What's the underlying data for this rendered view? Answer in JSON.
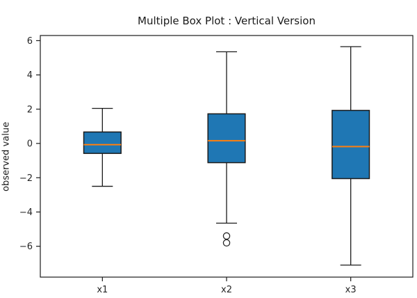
{
  "figure": {
    "background": "#ffffff"
  },
  "chart_data": {
    "type": "boxplot",
    "orientation": "vertical",
    "title": "Multiple Box Plot : Vertical Version",
    "xlabel": "",
    "ylabel": "observed value",
    "categories": [
      "x1",
      "x2",
      "x3"
    ],
    "series": [
      {
        "name": "x1",
        "whisker_low": -2.5,
        "q1": -0.58,
        "median": -0.07,
        "q3": 0.67,
        "whisker_high": 2.05,
        "outliers": []
      },
      {
        "name": "x2",
        "whisker_low": -4.65,
        "q1": -1.12,
        "median": 0.16,
        "q3": 1.73,
        "whisker_high": 5.35,
        "outliers": [
          -5.4,
          -5.8
        ]
      },
      {
        "name": "x3",
        "whisker_low": -7.1,
        "q1": -2.05,
        "median": -0.18,
        "q3": 1.93,
        "whisker_high": 5.65,
        "outliers": []
      }
    ],
    "xlim": [
      0.5,
      3.5
    ],
    "ylim": [
      -7.8,
      6.3
    ],
    "yticks": [
      6,
      4,
      2,
      0,
      -2,
      -4,
      -6
    ],
    "ytick_labels": [
      "6",
      "4",
      "2",
      "0",
      "−2",
      "−4",
      "−6"
    ],
    "grid": false,
    "legend": null,
    "box_width_units": 0.3,
    "colors": {
      "box_fill": "#1f77b4",
      "box_edge": "#1a1a1a",
      "median": "#ff7f0e",
      "whisker": "#1a1a1a",
      "cap": "#1a1a1a",
      "outlier_edge": "#262626",
      "spine": "#1a1a1a",
      "tick": "#1a1a1a",
      "text": "#262626"
    }
  }
}
